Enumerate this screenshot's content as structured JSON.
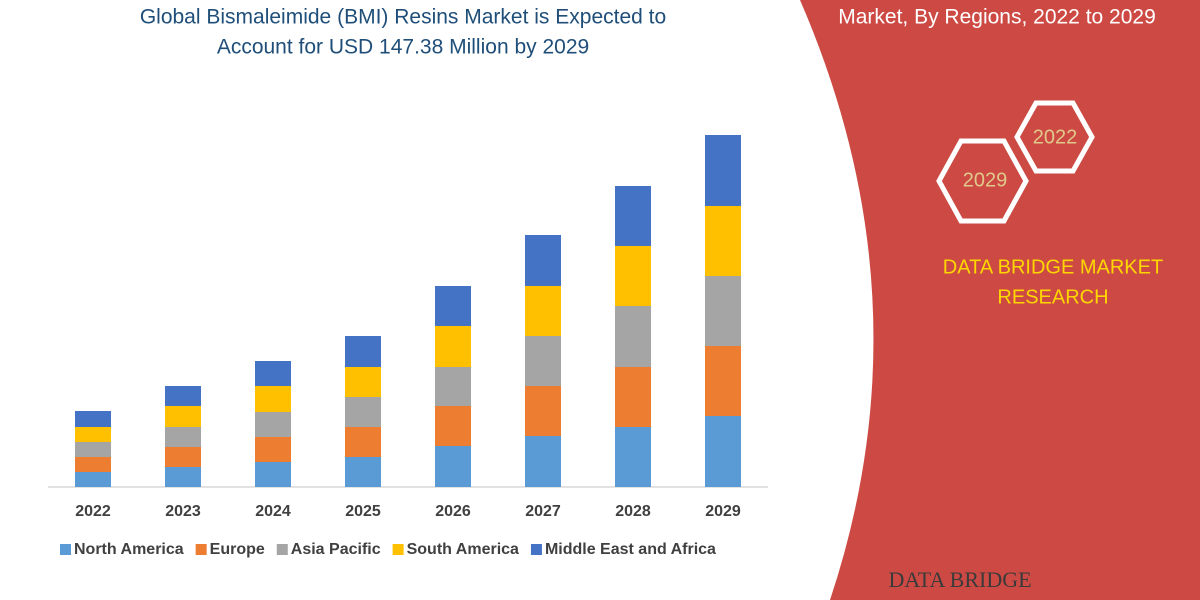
{
  "chart_data": {
    "type": "bar",
    "stacked": true,
    "title": [
      "Global Bismaleimide (BMI) Resins Market is Expected to",
      "Account for USD 147.38 Million by 2029"
    ],
    "categories": [
      "2022",
      "2023",
      "2024",
      "2025",
      "2026",
      "2027",
      "2028",
      "2029"
    ],
    "series": [
      {
        "name": "North America",
        "color": "#5b9bd5",
        "values": [
          15,
          20,
          25,
          30,
          41,
          51,
          60,
          71
        ]
      },
      {
        "name": "Europe",
        "color": "#ed7d31",
        "values": [
          15,
          20,
          25,
          30,
          40,
          50,
          60,
          70
        ]
      },
      {
        "name": "Asia Pacific",
        "color": "#a5a5a5",
        "values": [
          15,
          20,
          25,
          30,
          39,
          50,
          61,
          70
        ]
      },
      {
        "name": "South America",
        "color": "#ffc000",
        "values": [
          15,
          21,
          26,
          30,
          41,
          50,
          60,
          70
        ]
      },
      {
        "name": "Middle East and Africa",
        "color": "#4472c4",
        "values": [
          16,
          20,
          25,
          31,
          40,
          51,
          60,
          71
        ]
      }
    ]
  },
  "panel": {
    "subtitle": "Market, By Regions, 2022 to 2029",
    "hexagons": [
      "2022",
      "2029"
    ],
    "brand": [
      "DATA BRIDGE MARKET",
      "RESEARCH"
    ],
    "logo": "DATA BRIDGE"
  }
}
